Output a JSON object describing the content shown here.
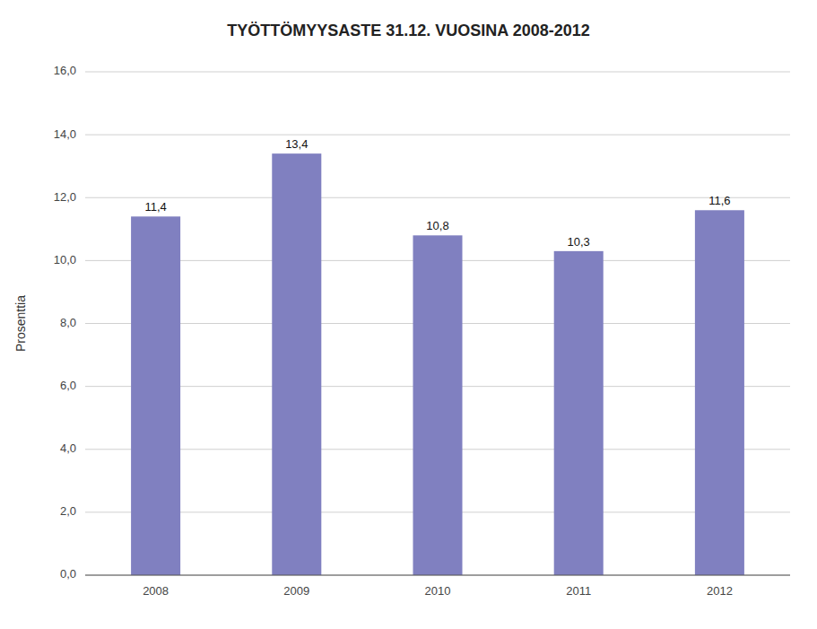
{
  "chart_data": {
    "type": "bar",
    "title": "TYÖTTÖMYYSASTE 31.12. VUOSINA 2008-2012",
    "ylabel": "Prosenttia",
    "categories": [
      "2008",
      "2009",
      "2010",
      "2011",
      "2012"
    ],
    "values": [
      11.4,
      13.4,
      10.8,
      10.3,
      11.6
    ],
    "value_labels": [
      "11,4",
      "13,4",
      "10,8",
      "10,3",
      "11,6"
    ],
    "data_labels": true,
    "color": "#8080c0",
    "ylim": [
      0,
      16.0
    ],
    "yticks": [
      {
        "value": 0,
        "label": "0,0"
      },
      {
        "value": 2,
        "label": "2,0"
      },
      {
        "value": 4,
        "label": "4,0"
      },
      {
        "value": 6,
        "label": "6,0"
      },
      {
        "value": 8,
        "label": "8,0"
      },
      {
        "value": 10,
        "label": "10,0"
      },
      {
        "value": 12,
        "label": "12,0"
      },
      {
        "value": 14,
        "label": "14,0"
      },
      {
        "value": 16,
        "label": "16,0"
      }
    ],
    "grid": true
  }
}
